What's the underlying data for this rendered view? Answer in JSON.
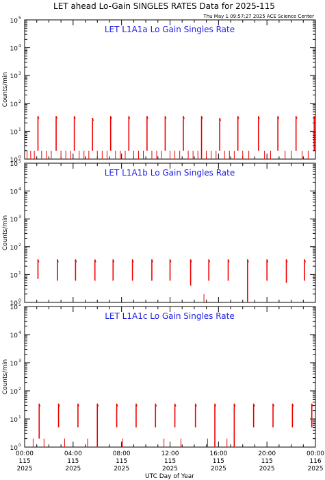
{
  "title": "LET ahead Lo-Gain SINGLES RATES Data for 2025-115",
  "timestamp": "Thu May  1 09:57:27 2025 ACE Science Center",
  "xlabel": "UTC Day of Year",
  "ylabel": "Counts/min",
  "colors": {
    "data": "#ee0000",
    "title": "#1f1fe0",
    "frame": "#000000"
  },
  "x_ticks": [
    {
      "time": "00:00",
      "day": "115",
      "year": "2025"
    },
    {
      "time": "04:00",
      "day": "115",
      "year": "2025"
    },
    {
      "time": "08:00",
      "day": "115",
      "year": "2025"
    },
    {
      "time": "12:00",
      "day": "115",
      "year": "2025"
    },
    {
      "time": "16:00",
      "day": "115",
      "year": "2025"
    },
    {
      "time": "20:00",
      "day": "115",
      "year": "2025"
    },
    {
      "time": "00:00",
      "day": "116",
      "year": "2025"
    }
  ],
  "y_ticks": [
    {
      "base": "10",
      "exp": "0"
    },
    {
      "base": "10",
      "exp": "1"
    },
    {
      "base": "10",
      "exp": "2"
    },
    {
      "base": "10",
      "exp": "3"
    },
    {
      "base": "10",
      "exp": "4"
    },
    {
      "base": "10",
      "exp": "5"
    }
  ],
  "chart_data": [
    {
      "type": "line",
      "title": "LET L1A1a Lo Gain Singles Rate",
      "xlabel": "UTC Day of Year",
      "ylabel": "Counts/min",
      "xlim": [
        0,
        24
      ],
      "ylim": [
        1,
        100000
      ],
      "yscale": "log",
      "series": [
        {
          "color": "#ee0000",
          "pulses": [
            {
              "t": 1.1,
              "low": 2,
              "high": 35
            },
            {
              "t": 2.6,
              "low": 2,
              "high": 35
            },
            {
              "t": 4.1,
              "low": 2,
              "high": 35
            },
            {
              "t": 5.6,
              "low": 2,
              "high": 30
            },
            {
              "t": 7.1,
              "low": 2,
              "high": 35
            },
            {
              "t": 8.6,
              "low": 2,
              "high": 35
            },
            {
              "t": 10.1,
              "low": 2,
              "high": 35
            },
            {
              "t": 11.6,
              "low": 2,
              "high": 35
            },
            {
              "t": 13.1,
              "low": 2,
              "high": 35
            },
            {
              "t": 14.6,
              "low": 1,
              "high": 35
            },
            {
              "t": 16.1,
              "low": 2,
              "high": 30
            },
            {
              "t": 17.6,
              "low": 2,
              "high": 35
            },
            {
              "t": 19.3,
              "low": 2,
              "high": 35
            },
            {
              "t": 20.9,
              "low": 2,
              "high": 35
            },
            {
              "t": 22.4,
              "low": 2,
              "high": 35
            },
            {
              "t": 23.9,
              "low": 2,
              "high": 35
            }
          ],
          "noise": [
            {
              "t": 0.2,
              "v": 2
            },
            {
              "t": 0.5,
              "v": 2
            },
            {
              "t": 0.8,
              "v": 2
            },
            {
              "t": 1.4,
              "v": 2
            },
            {
              "t": 1.8,
              "v": 2
            },
            {
              "t": 2.2,
              "v": 2
            },
            {
              "t": 3.0,
              "v": 2
            },
            {
              "t": 3.4,
              "v": 2
            },
            {
              "t": 3.8,
              "v": 2
            },
            {
              "t": 4.5,
              "v": 2
            },
            {
              "t": 4.9,
              "v": 2
            },
            {
              "t": 5.3,
              "v": 2
            },
            {
              "t": 6.0,
              "v": 2
            },
            {
              "t": 6.4,
              "v": 2
            },
            {
              "t": 6.8,
              "v": 2
            },
            {
              "t": 7.5,
              "v": 2
            },
            {
              "t": 7.9,
              "v": 2
            },
            {
              "t": 8.3,
              "v": 2
            },
            {
              "t": 9.0,
              "v": 2
            },
            {
              "t": 9.4,
              "v": 2
            },
            {
              "t": 9.8,
              "v": 2
            },
            {
              "t": 10.5,
              "v": 2
            },
            {
              "t": 10.9,
              "v": 2
            },
            {
              "t": 11.3,
              "v": 2
            },
            {
              "t": 12.0,
              "v": 2
            },
            {
              "t": 12.4,
              "v": 2
            },
            {
              "t": 12.8,
              "v": 2
            },
            {
              "t": 13.5,
              "v": 2
            },
            {
              "t": 13.9,
              "v": 2
            },
            {
              "t": 14.3,
              "v": 2
            },
            {
              "t": 15.0,
              "v": 2
            },
            {
              "t": 15.4,
              "v": 2
            },
            {
              "t": 15.8,
              "v": 2
            },
            {
              "t": 16.5,
              "v": 2
            },
            {
              "t": 16.9,
              "v": 2
            },
            {
              "t": 17.3,
              "v": 2
            },
            {
              "t": 18.0,
              "v": 2
            },
            {
              "t": 18.5,
              "v": 2
            },
            {
              "t": 19.8,
              "v": 2
            },
            {
              "t": 20.3,
              "v": 2
            },
            {
              "t": 21.5,
              "v": 2
            },
            {
              "t": 22.0,
              "v": 2
            },
            {
              "t": 22.9,
              "v": 2
            },
            {
              "t": 23.4,
              "v": 2
            }
          ]
        }
      ]
    },
    {
      "type": "line",
      "title": "LET L1A1b Lo Gain Singles Rate",
      "xlabel": "UTC Day of Year",
      "ylabel": "Counts/min",
      "xlim": [
        0,
        24
      ],
      "ylim": [
        1,
        100000
      ],
      "yscale": "log",
      "series": [
        {
          "color": "#ee0000",
          "pulses": [
            {
              "t": 1.1,
              "low": 7,
              "high": 35
            },
            {
              "t": 2.7,
              "low": 6,
              "high": 35
            },
            {
              "t": 4.2,
              "low": 6,
              "high": 35
            },
            {
              "t": 5.8,
              "low": 6,
              "high": 35
            },
            {
              "t": 7.3,
              "low": 6,
              "high": 35
            },
            {
              "t": 8.9,
              "low": 6,
              "high": 35
            },
            {
              "t": 10.5,
              "low": 6,
              "high": 35
            },
            {
              "t": 12.0,
              "low": 6,
              "high": 35
            },
            {
              "t": 13.7,
              "low": 4,
              "high": 35
            },
            {
              "t": 15.2,
              "low": 6,
              "high": 35
            },
            {
              "t": 16.8,
              "low": 6,
              "high": 35
            },
            {
              "t": 18.4,
              "low": 1,
              "high": 35
            },
            {
              "t": 20.0,
              "low": 6,
              "high": 35
            },
            {
              "t": 21.6,
              "low": 5,
              "high": 35
            },
            {
              "t": 23.1,
              "low": 6,
              "high": 35
            }
          ],
          "noise": [
            {
              "t": 0.1,
              "v": 1
            },
            {
              "t": 14.8,
              "v": 2
            }
          ]
        }
      ]
    },
    {
      "type": "line",
      "title": "LET L1A1c Lo Gain Singles Rate",
      "xlabel": "UTC Day of Year",
      "ylabel": "Counts/min",
      "xlim": [
        0,
        24
      ],
      "ylim": [
        1,
        100000
      ],
      "yscale": "log",
      "series": [
        {
          "color": "#ee0000",
          "pulses": [
            {
              "t": 1.2,
              "low": 2,
              "high": 35
            },
            {
              "t": 2.8,
              "low": 5,
              "high": 35
            },
            {
              "t": 4.4,
              "low": 5,
              "high": 35
            },
            {
              "t": 6.0,
              "low": 1,
              "high": 35
            },
            {
              "t": 7.6,
              "low": 5,
              "high": 35
            },
            {
              "t": 9.2,
              "low": 5,
              "high": 35
            },
            {
              "t": 10.8,
              "low": 5,
              "high": 35
            },
            {
              "t": 12.4,
              "low": 5,
              "high": 35
            },
            {
              "t": 14.1,
              "low": 5,
              "high": 35
            },
            {
              "t": 15.7,
              "low": 1,
              "high": 35
            },
            {
              "t": 17.3,
              "low": 1,
              "high": 35
            },
            {
              "t": 18.9,
              "low": 5,
              "high": 35
            },
            {
              "t": 20.5,
              "low": 5,
              "high": 35
            },
            {
              "t": 22.1,
              "low": 5,
              "high": 35
            },
            {
              "t": 23.7,
              "low": 5,
              "high": 35
            }
          ],
          "noise": [
            {
              "t": 0.3,
              "v": 1
            },
            {
              "t": 0.7,
              "v": 2
            },
            {
              "t": 1.6,
              "v": 2
            },
            {
              "t": 2.1,
              "v": 1
            },
            {
              "t": 3.3,
              "v": 2
            },
            {
              "t": 3.8,
              "v": 1
            },
            {
              "t": 5.2,
              "v": 2
            },
            {
              "t": 6.5,
              "v": 1
            },
            {
              "t": 6.9,
              "v": 1
            },
            {
              "t": 8.1,
              "v": 2
            },
            {
              "t": 8.5,
              "v": 1
            },
            {
              "t": 9.7,
              "v": 1
            },
            {
              "t": 10.3,
              "v": 1
            },
            {
              "t": 11.5,
              "v": 2
            },
            {
              "t": 11.9,
              "v": 1
            },
            {
              "t": 12.9,
              "v": 2
            },
            {
              "t": 13.4,
              "v": 1
            },
            {
              "t": 14.6,
              "v": 1
            },
            {
              "t": 15.1,
              "v": 2
            },
            {
              "t": 16.2,
              "v": 1
            },
            {
              "t": 16.7,
              "v": 2
            },
            {
              "t": 17.8,
              "v": 1
            },
            {
              "t": 18.3,
              "v": 1
            },
            {
              "t": 19.5,
              "v": 1
            },
            {
              "t": 20.0,
              "v": 1
            },
            {
              "t": 21.0,
              "v": 1
            },
            {
              "t": 21.5,
              "v": 1
            },
            {
              "t": 22.6,
              "v": 1
            },
            {
              "t": 23.2,
              "v": 1
            }
          ]
        }
      ]
    }
  ]
}
